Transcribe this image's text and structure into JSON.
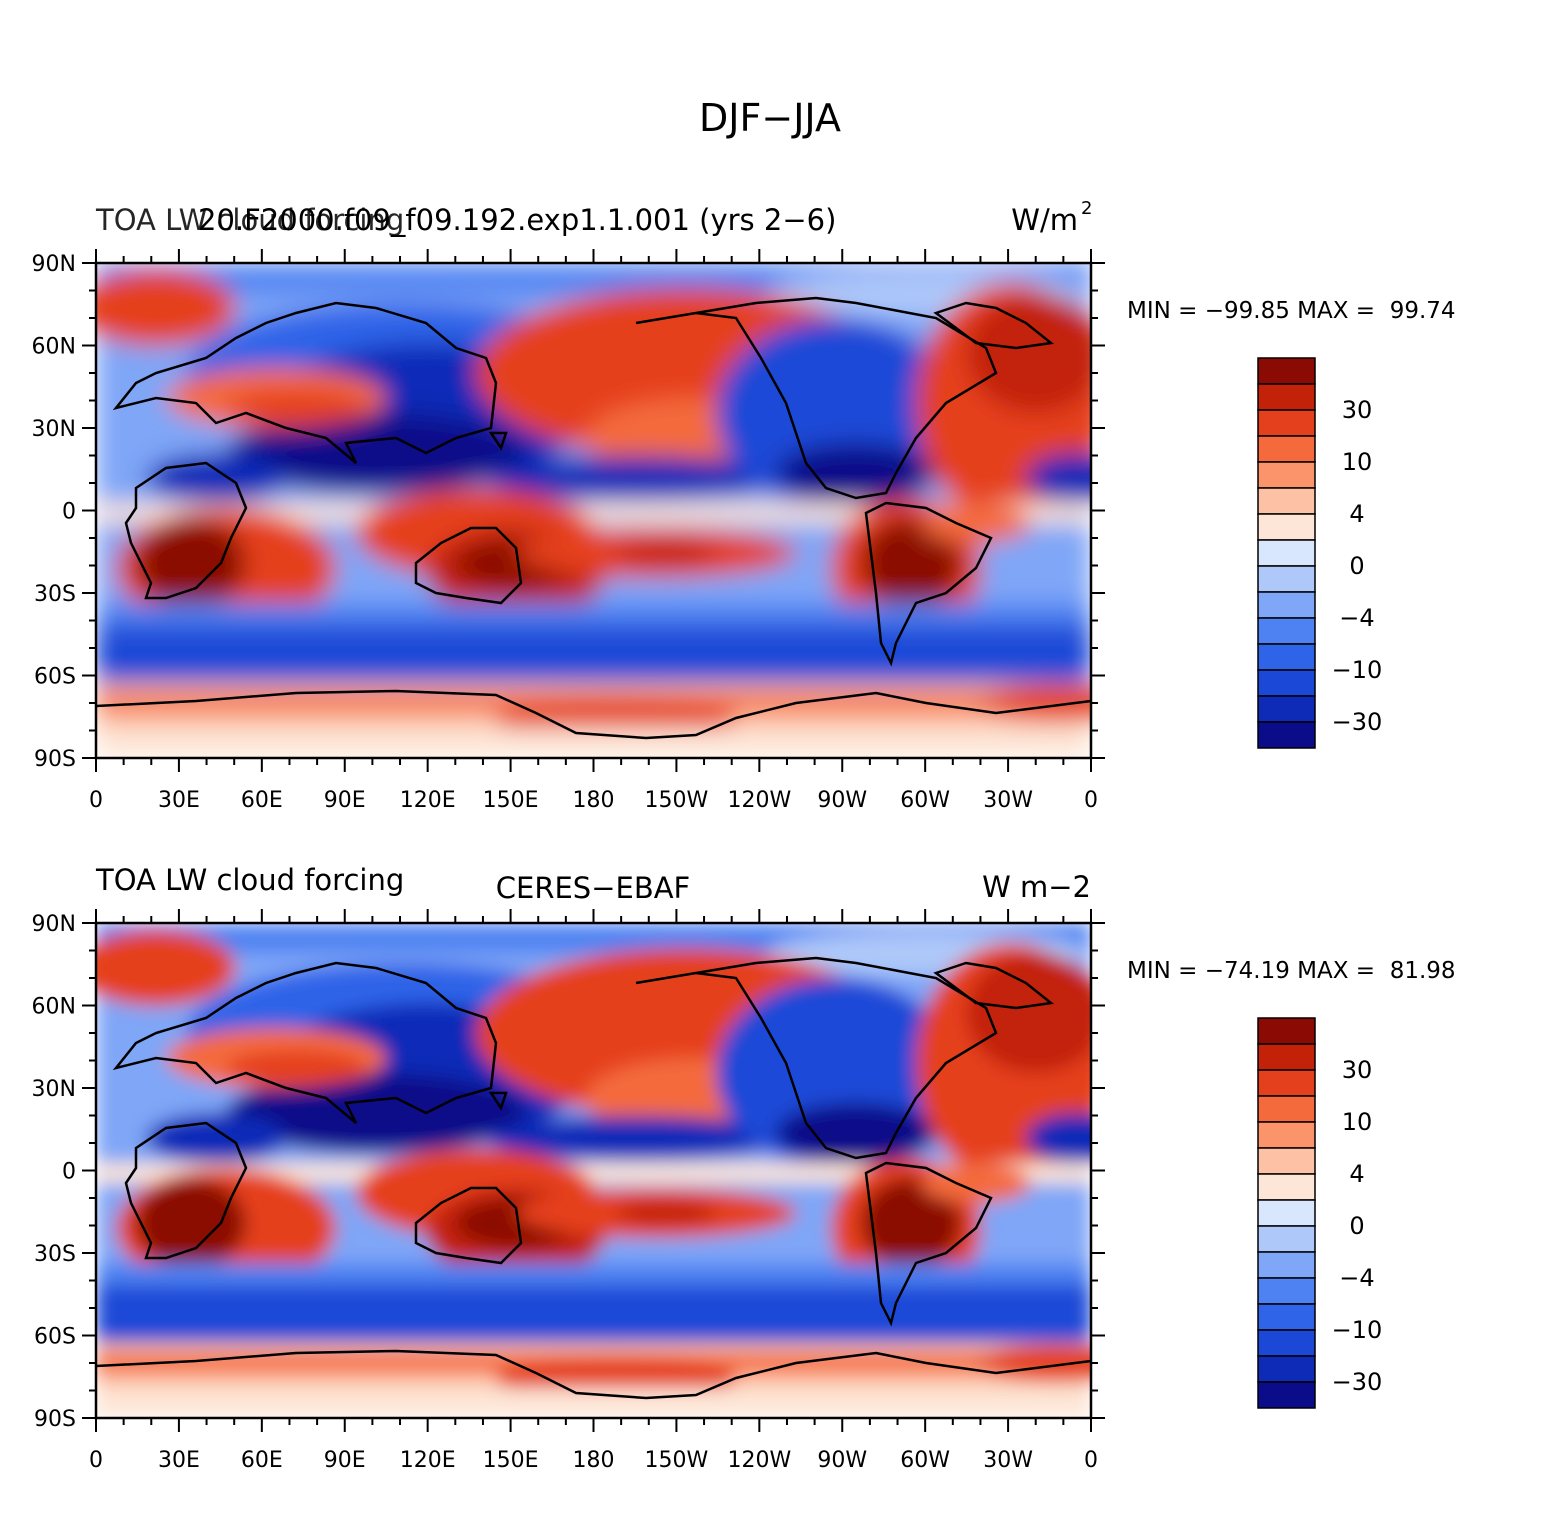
{
  "figure": {
    "title": "DJF−JJA"
  },
  "colors": {
    "land_outline": "#000000",
    "frame": "#000000",
    "palette": [
      "#0b0c8a",
      "#0e2bb8",
      "#1c48d7",
      "#2f63e8",
      "#4e82f2",
      "#7fa6f7",
      "#adc8f9",
      "#d8e7fd",
      "#fde6d7",
      "#fdc2a6",
      "#fb946a",
      "#f46a3d",
      "#e5401d",
      "#c32209",
      "#8b0a03"
    ]
  },
  "colorbar": {
    "labels": [
      "30",
      "10",
      "4",
      "0",
      "−4",
      "−10",
      "−30"
    ]
  },
  "axes": {
    "y_labels": [
      "90N",
      "60N",
      "30N",
      "0",
      "30S",
      "60S",
      "90S"
    ],
    "x_labels": [
      "0",
      "30E",
      "60E",
      "90E",
      "120E",
      "150E",
      "180",
      "150W",
      "120W",
      "90W",
      "60W",
      "30W",
      "0"
    ]
  },
  "panels": [
    {
      "id": "model",
      "left_title": "TOA LW cloud forcing",
      "overlay_title": "20.F2000.f09_f09.192.exp1.1.001 (yrs 2−6)",
      "center_title": "",
      "right_title": "W/m",
      "right_title_sup": "2",
      "stats": "MIN = −99.85 MAX =  99.74"
    },
    {
      "id": "obs",
      "left_title": "TOA LW cloud forcing",
      "overlay_title": "",
      "center_title": "CERES−EBAF",
      "right_title": "W m−2",
      "right_title_sup": "",
      "stats": "MIN = −74.19 MAX =  81.98"
    }
  ]
}
